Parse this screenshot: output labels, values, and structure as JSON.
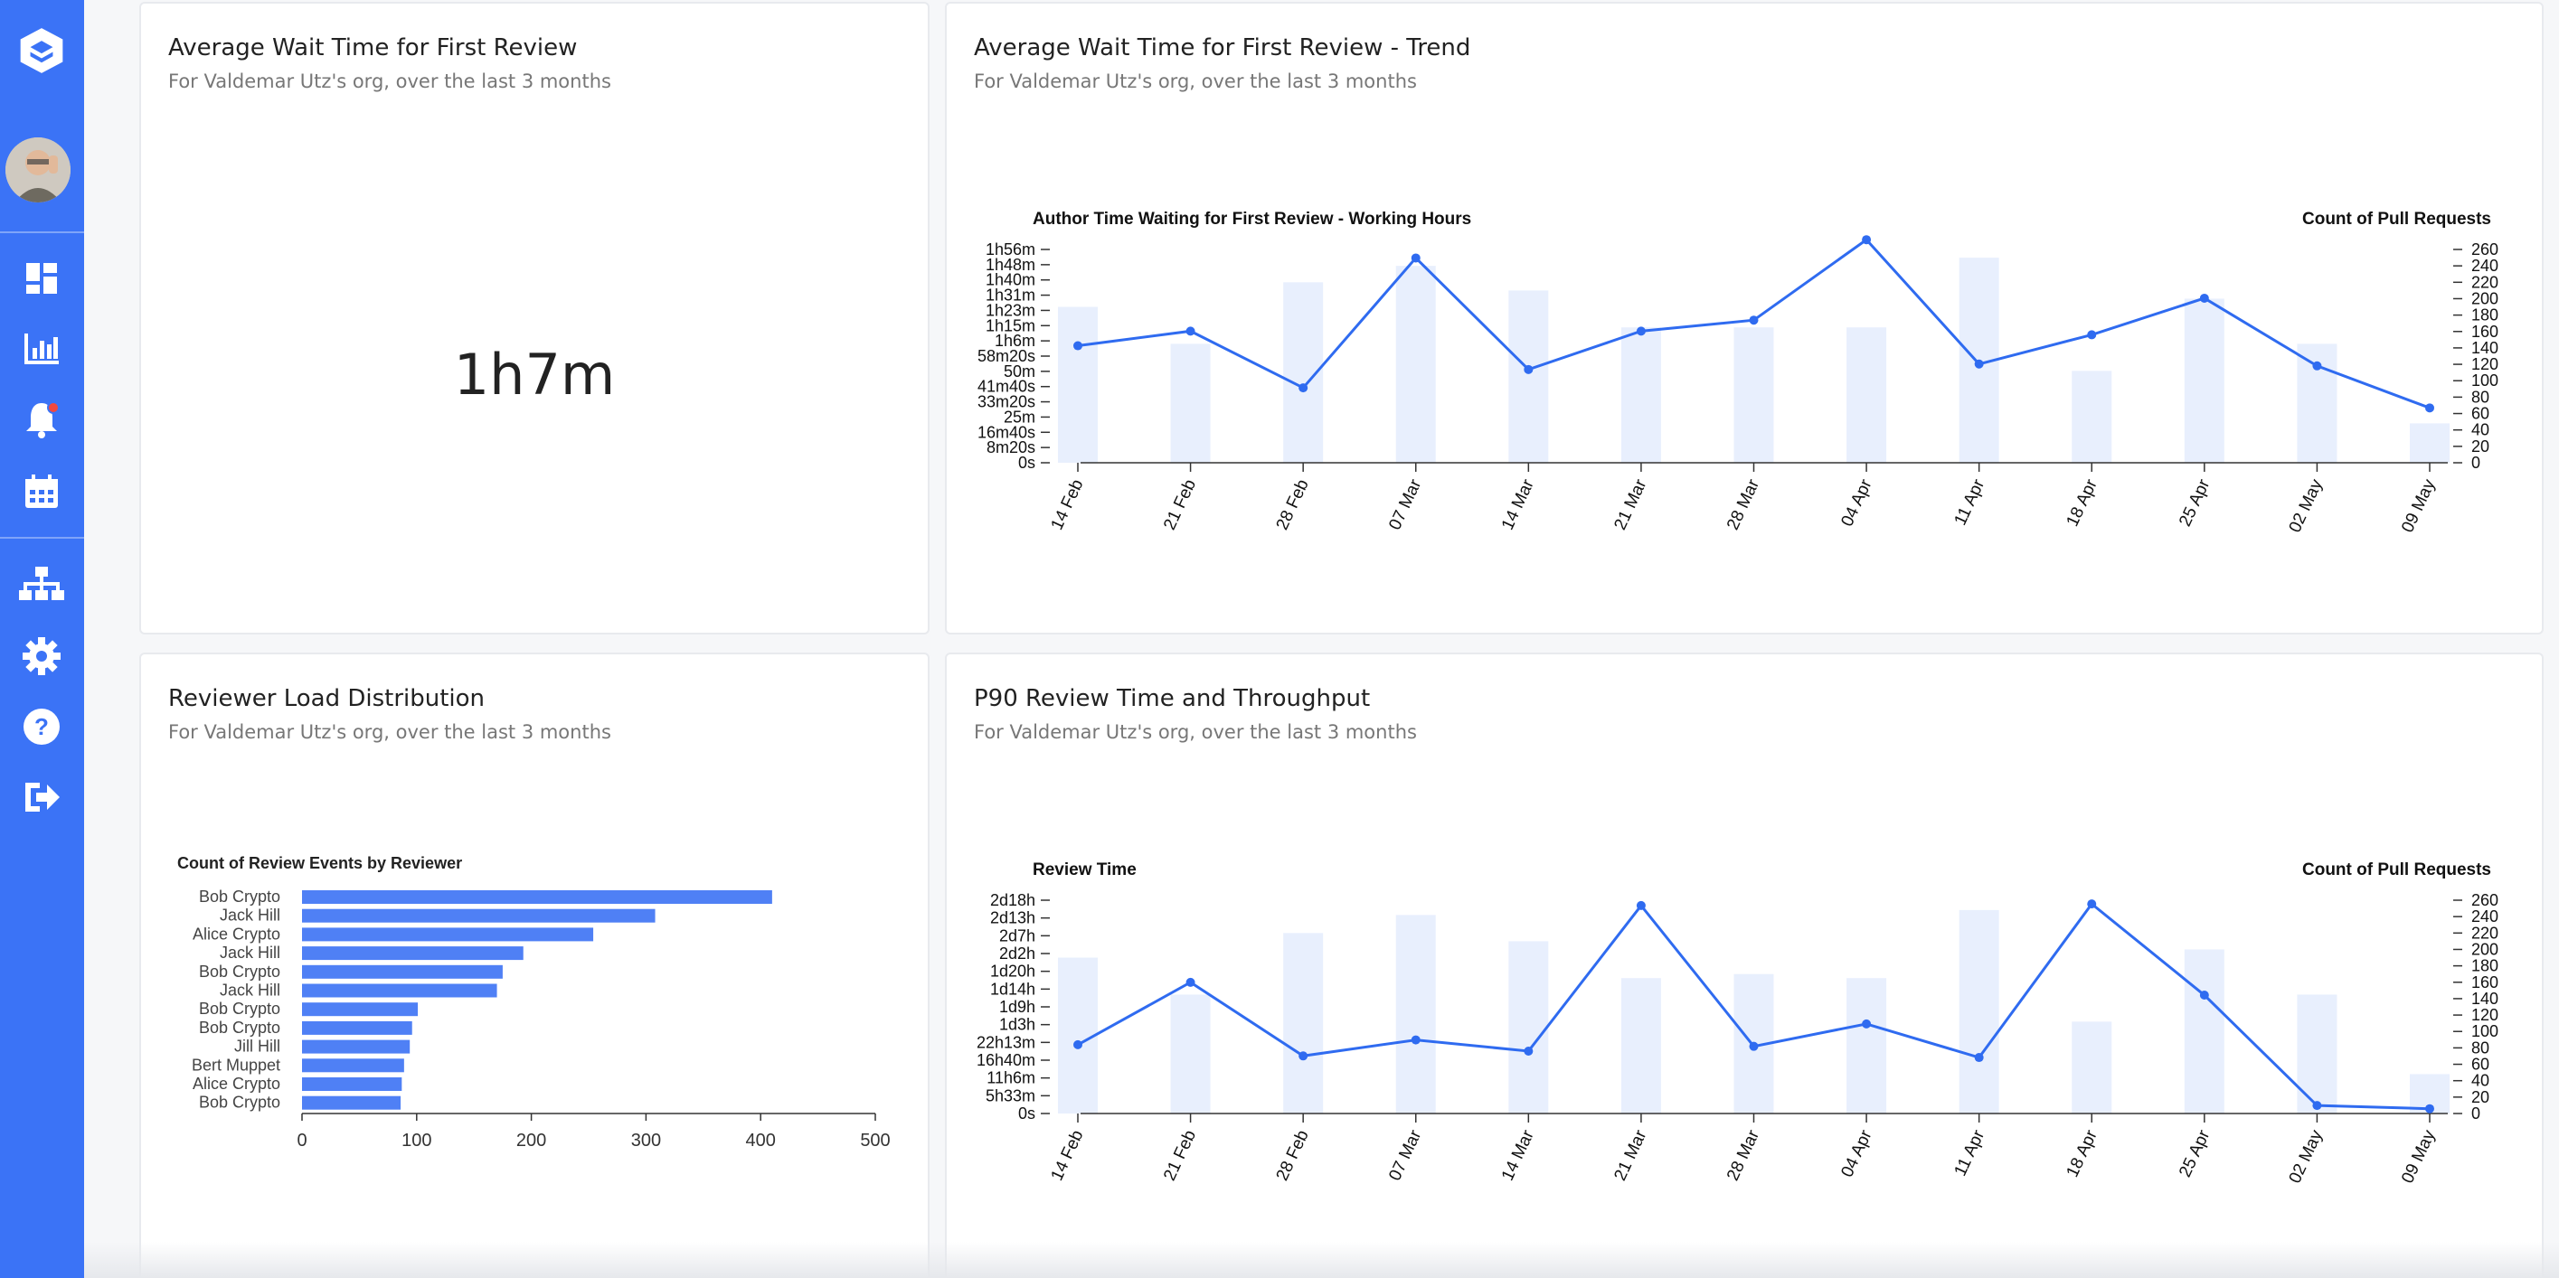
{
  "sidebar": {
    "icons": [
      "logo-icon",
      "avatar",
      "dashboard-icon",
      "bar-chart-icon",
      "bell-icon",
      "calendar-icon",
      "org-chart-icon",
      "gear-icon",
      "help-icon",
      "logout-icon"
    ]
  },
  "colors": {
    "sidebar": "#3b73f6",
    "line": "#2f6bf0",
    "bar": "#e8effd",
    "hbar": "#4f80f5"
  },
  "cards": {
    "avg_wait": {
      "title": "Average Wait Time for First Review",
      "subtitle": "For Valdemar Utz's org, over the last 3 months",
      "value": "1h7m"
    },
    "trend": {
      "title": "Average Wait Time for First Review - Trend",
      "subtitle": "For Valdemar Utz's org, over the last 3 months"
    },
    "reviewer_load": {
      "title": "Reviewer Load Distribution",
      "subtitle": "For Valdemar Utz's org, over the last 3 months"
    },
    "p90": {
      "title": "P90 Review Time and Throughput",
      "subtitle": "For Valdemar Utz's org, over the last 3 months"
    }
  },
  "chart_data": [
    {
      "type": "bar+line",
      "left_axis_title": "Author Time Waiting for First Review - Working Hours",
      "right_axis_title": "Count of Pull Requests",
      "categories": [
        "14 Feb",
        "21 Feb",
        "28 Feb",
        "07 Mar",
        "14 Mar",
        "21 Mar",
        "28 Mar",
        "04 Apr",
        "11 Apr",
        "18 Apr",
        "25 Apr",
        "02 May",
        "09 May"
      ],
      "left_ticks": [
        "0s",
        "8m20s",
        "16m40s",
        "25m",
        "33m20s",
        "41m40s",
        "50m",
        "58m20s",
        "1h6m",
        "1h15m",
        "1h23m",
        "1h31m",
        "1h40m",
        "1h48m",
        "1h56m"
      ],
      "left_max_minutes": 116.67,
      "right_ticks": [
        "0",
        "20",
        "40",
        "60",
        "80",
        "100",
        "120",
        "140",
        "160",
        "180",
        "200",
        "220",
        "240",
        "260"
      ],
      "right_max": 260,
      "line_minutes": [
        64,
        72,
        41,
        112,
        51,
        72,
        78,
        122,
        54,
        70,
        90,
        53,
        30
      ],
      "bar_counts": [
        190,
        145,
        220,
        240,
        210,
        165,
        165,
        165,
        250,
        112,
        200,
        145,
        48
      ]
    },
    {
      "type": "horizontal-bar",
      "title": "Count of Review Events by Reviewer",
      "categories": [
        "Bob Crypto",
        "Jack Hill",
        "Alice Crypto",
        "Jack Hill",
        "Bob Crypto",
        "Jack Hill",
        "Bob Crypto",
        "Bob Crypto",
        "Jill Hill",
        "Bert Muppet",
        "Alice Crypto",
        "Bob Crypto"
      ],
      "values": [
        410,
        308,
        254,
        193,
        175,
        170,
        101,
        96,
        94,
        89,
        87,
        86
      ],
      "x_ticks": [
        "0",
        "100",
        "200",
        "300",
        "400",
        "500"
      ],
      "xlim": [
        0,
        500
      ]
    },
    {
      "type": "bar+line",
      "left_axis_title": "Review Time",
      "right_axis_title": "Count of Pull Requests",
      "categories": [
        "14 Feb",
        "21 Feb",
        "28 Feb",
        "07 Mar",
        "14 Mar",
        "21 Mar",
        "28 Mar",
        "04 Apr",
        "11 Apr",
        "18 Apr",
        "25 Apr",
        "02 May",
        "09 May"
      ],
      "left_ticks": [
        "0s",
        "5h33m",
        "11h6m",
        "16h40m",
        "22h13m",
        "1d3h",
        "1d9h",
        "1d14h",
        "1d20h",
        "2d2h",
        "2d7h",
        "2d13h",
        "2d18h"
      ],
      "left_max_hours": 66.67,
      "right_ticks": [
        "0",
        "20",
        "40",
        "60",
        "80",
        "100",
        "120",
        "140",
        "160",
        "180",
        "200",
        "220",
        "240",
        "260"
      ],
      "right_max": 260,
      "line_hours": [
        21.5,
        41,
        18,
        23,
        19.5,
        65,
        21,
        28,
        17.5,
        65.5,
        37,
        2.5,
        1.5
      ],
      "bar_counts": [
        190,
        145,
        220,
        242,
        210,
        165,
        170,
        165,
        248,
        112,
        200,
        145,
        48
      ]
    }
  ]
}
